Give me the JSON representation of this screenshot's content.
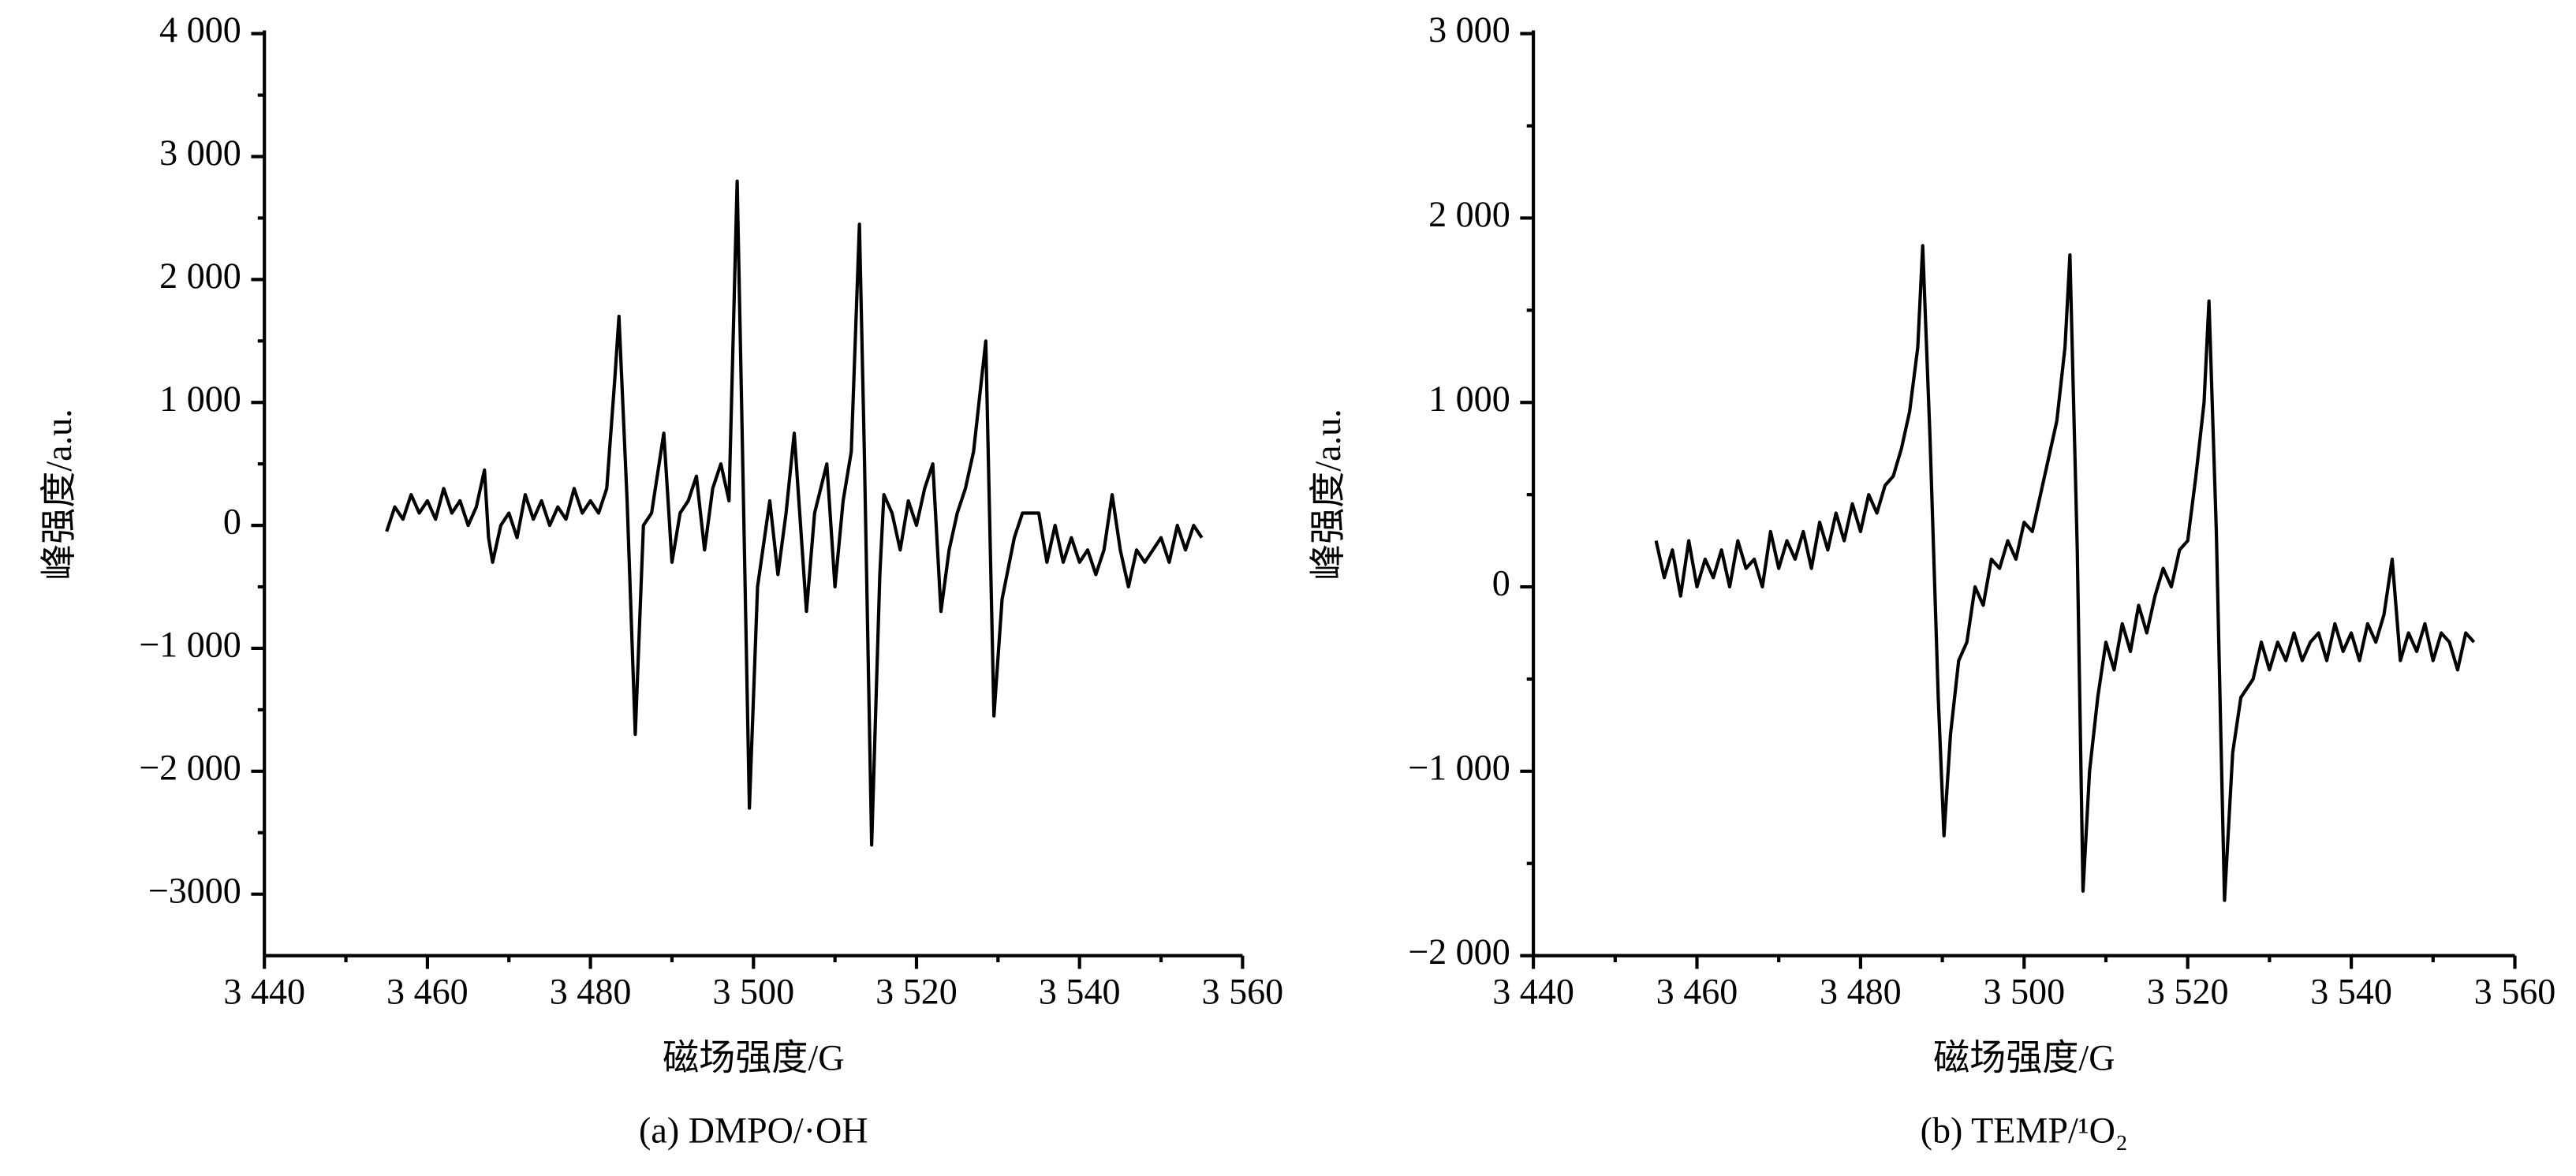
{
  "chart_data": [
    {
      "type": "line",
      "title": "(a) DMPO/·OH",
      "xlabel": "磁场强度/G",
      "ylabel": "峰强度/a.u.",
      "xlim": [
        3440,
        3560
      ],
      "ylim": [
        -3500,
        4000
      ],
      "xticks": [
        {
          "value": 3440,
          "label": "3 440"
        },
        {
          "value": 3460,
          "label": "3 460"
        },
        {
          "value": 3480,
          "label": "3 480"
        },
        {
          "value": 3500,
          "label": "3 500"
        },
        {
          "value": 3520,
          "label": "3 520"
        },
        {
          "value": 3540,
          "label": "3 540"
        },
        {
          "value": 3560,
          "label": "3 560"
        }
      ],
      "yticks": [
        {
          "value": -3000,
          "label": "−3000"
        },
        {
          "value": -2000,
          "label": "−2 000"
        },
        {
          "value": -1000,
          "label": "−1 000"
        },
        0,
        {
          "value": 1000,
          "label": "1 000"
        },
        {
          "value": 2000,
          "label": "2 000"
        },
        {
          "value": 3000,
          "label": "3 000"
        },
        {
          "value": 4000,
          "label": "4 000"
        }
      ],
      "series": [
        {
          "color": "#000000",
          "x": [
            3455,
            3456,
            3457,
            3458,
            3459,
            3460,
            3461,
            3462,
            3463,
            3464,
            3465,
            3466,
            3467,
            3467.5,
            3468,
            3469,
            3470,
            3471,
            3472,
            3473,
            3474,
            3475,
            3476,
            3477,
            3478,
            3479,
            3480,
            3481,
            3482,
            3483,
            3483.5,
            3484.5,
            3485.5,
            3486.5,
            3487.5,
            3489,
            3490,
            3491,
            3492,
            3493,
            3494,
            3495,
            3496,
            3497,
            3498,
            3498.6,
            3499.5,
            3500.5,
            3502,
            3503,
            3504,
            3505,
            3506.5,
            3507.5,
            3509,
            3510,
            3511,
            3512,
            3513,
            3513.6,
            3514.5,
            3515.5,
            3516,
            3517,
            3518,
            3519,
            3520,
            3521,
            3522,
            3523,
            3524,
            3525,
            3526,
            3527,
            3528.5,
            3529.5,
            3530.5,
            3532,
            3533,
            3535,
            3536,
            3537,
            3538,
            3539,
            3540,
            3541,
            3542,
            3543,
            3544,
            3545,
            3546,
            3547,
            3548,
            3549,
            3550,
            3551,
            3552,
            3553,
            3554,
            3555
          ],
          "values": [
            -50,
            150,
            50,
            250,
            100,
            200,
            50,
            300,
            100,
            200,
            0,
            150,
            450,
            -100,
            -300,
            0,
            100,
            -100,
            250,
            50,
            200,
            0,
            150,
            50,
            300,
            100,
            200,
            100,
            300,
            1200,
            1700,
            200,
            -1700,
            0,
            100,
            750,
            -300,
            100,
            200,
            400,
            -200,
            300,
            500,
            200,
            2800,
            800,
            -2300,
            -500,
            200,
            -400,
            100,
            750,
            -700,
            100,
            500,
            -500,
            200,
            600,
            2450,
            600,
            -2600,
            -400,
            250,
            100,
            -200,
            200,
            0,
            300,
            500,
            -700,
            -200,
            100,
            300,
            600,
            1500,
            -1550,
            -600,
            -100,
            100,
            100,
            -300,
            0,
            -300,
            -100,
            -300,
            -200,
            -400,
            -200,
            250,
            -200,
            -500,
            -200,
            -300,
            -200,
            -100,
            -300,
            0,
            -200,
            0,
            -100
          ]
        }
      ]
    },
    {
      "type": "line",
      "title": "(b) TEMP/¹O₂",
      "xlabel": "磁场强度/G",
      "ylabel": "峰强度/a.u.",
      "xlim": [
        3440,
        3560
      ],
      "ylim": [
        -2000,
        3000
      ],
      "xticks": [
        {
          "value": 3440,
          "label": "3 440"
        },
        {
          "value": 3460,
          "label": "3 460"
        },
        {
          "value": 3480,
          "label": "3 480"
        },
        {
          "value": 3500,
          "label": "3 500"
        },
        {
          "value": 3520,
          "label": "3 520"
        },
        {
          "value": 3540,
          "label": "3 540"
        },
        {
          "value": 3560,
          "label": "3 560"
        }
      ],
      "yticks": [
        {
          "value": -2000,
          "label": "−2 000"
        },
        {
          "value": -1000,
          "label": "−1 000"
        },
        0,
        {
          "value": 1000,
          "label": "1 000"
        },
        {
          "value": 2000,
          "label": "2 000"
        },
        {
          "value": 3000,
          "label": "3 000"
        }
      ],
      "series": [
        {
          "color": "#000000",
          "x": [
            3455,
            3456,
            3457,
            3458,
            3459,
            3460,
            3461,
            3462,
            3463,
            3464,
            3465,
            3466,
            3467,
            3468,
            3469,
            3470,
            3471,
            3472,
            3473,
            3474,
            3475,
            3476,
            3477,
            3478,
            3479,
            3480,
            3481,
            3482,
            3483,
            3484,
            3485,
            3486,
            3487,
            3487.6,
            3488.5,
            3489.5,
            3490.2,
            3491,
            3492,
            3493,
            3494,
            3495,
            3496,
            3497,
            3498,
            3499,
            3500,
            3501,
            3502,
            3503,
            3504,
            3505,
            3505.6,
            3506.5,
            3507.2,
            3508,
            3509,
            3510,
            3511,
            3512,
            3513,
            3514,
            3515,
            3516,
            3517,
            3518,
            3519,
            3520,
            3521,
            3522,
            3522.6,
            3523.5,
            3524.5,
            3525.5,
            3526.5,
            3528,
            3529,
            3530,
            3531,
            3532,
            3533,
            3534,
            3535,
            3536,
            3537,
            3538,
            3539,
            3540,
            3541,
            3542,
            3543,
            3544,
            3545,
            3546,
            3547,
            3548,
            3549,
            3550,
            3551,
            3552,
            3553,
            3554,
            3555
          ],
          "values": [
            250,
            50,
            200,
            -50,
            250,
            0,
            150,
            50,
            200,
            0,
            250,
            100,
            150,
            0,
            300,
            100,
            250,
            150,
            300,
            100,
            350,
            200,
            400,
            250,
            450,
            300,
            500,
            400,
            550,
            600,
            750,
            950,
            1300,
            1850,
            800,
            -600,
            -1350,
            -800,
            -400,
            -300,
            0,
            -100,
            150,
            100,
            250,
            150,
            350,
            300,
            500,
            700,
            900,
            1300,
            1800,
            200,
            -1650,
            -1000,
            -600,
            -300,
            -450,
            -200,
            -350,
            -100,
            -250,
            -50,
            100,
            0,
            200,
            250,
            600,
            1000,
            1550,
            300,
            -1700,
            -900,
            -600,
            -500,
            -300,
            -450,
            -300,
            -400,
            -250,
            -400,
            -300,
            -250,
            -400,
            -200,
            -350,
            -250,
            -400,
            -200,
            -300,
            -150,
            150,
            -400,
            -250,
            -350,
            -200,
            -400,
            -250,
            -300,
            -450,
            -250,
            -300
          ]
        }
      ]
    }
  ]
}
